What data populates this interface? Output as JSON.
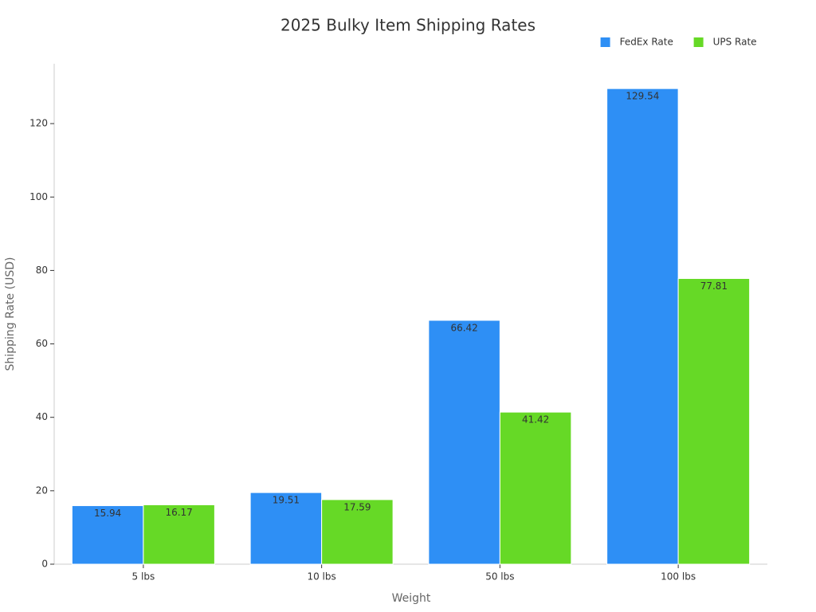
{
  "chart_data": {
    "type": "bar",
    "title": "2025 Bulky Item Shipping Rates",
    "x_label": "Weight",
    "y_label": "Shipping Rate (USD)",
    "categories": [
      "5 lbs",
      "10 lbs",
      "50 lbs",
      "100 lbs"
    ],
    "series": [
      {
        "name": "FedEx Rate",
        "color": "#2e8ff5",
        "values": [
          15.94,
          19.51,
          66.42,
          129.54
        ]
      },
      {
        "name": "UPS Rate",
        "color": "#66d926",
        "values": [
          16.17,
          17.59,
          41.42,
          77.81
        ]
      }
    ],
    "ylim": [
      0,
      136.3
    ],
    "yticks": [
      0,
      20,
      40,
      60,
      80,
      100,
      120
    ],
    "grid": false,
    "legend": "top-right",
    "data_labels": true
  }
}
